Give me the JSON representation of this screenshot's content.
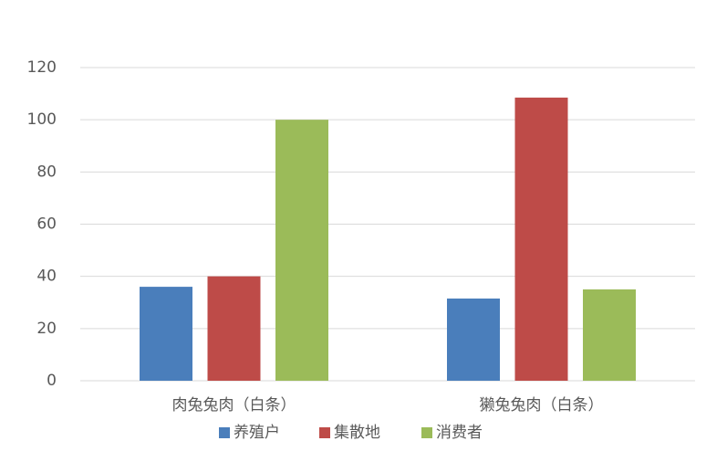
{
  "chart_data": {
    "type": "bar",
    "categories": [
      "肉兔兔肉（白条）",
      "獭兔兔肉（白条）"
    ],
    "series": [
      {
        "name": "养殖户",
        "color": "#4a7ebb",
        "values": [
          36,
          31.5
        ]
      },
      {
        "name": "集散地",
        "color": "#be4b48",
        "values": [
          40,
          108.5
        ]
      },
      {
        "name": "消费者",
        "color": "#9bbb59",
        "values": [
          100,
          35
        ]
      }
    ],
    "ylim": [
      0,
      120
    ],
    "yticks": [
      0,
      20,
      40,
      60,
      80,
      100,
      120
    ],
    "grid": true,
    "legend": "bottom"
  }
}
